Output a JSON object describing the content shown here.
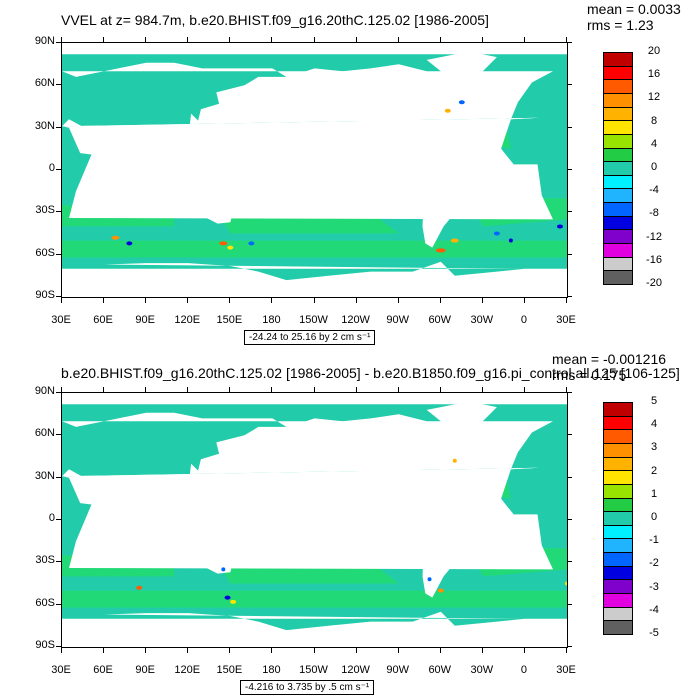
{
  "panels": [
    {
      "title": "VVEL at z= 984.7m, b.e20.BHIST.f09_g16.20thC.125.02 [1986-2005]",
      "stats": [
        "mean = 0.0033",
        "rms = 1.23"
      ],
      "range_label": "-24.24 to 25.16 by 2 cm s⁻¹",
      "colorbar_labels": [
        "20",
        "16",
        "12",
        "8",
        "4",
        "0",
        "-4",
        "-8",
        "-12",
        "-16",
        "-20"
      ],
      "colors": [
        "#c00000",
        "#ff0000",
        "#ff5a00",
        "#ff9000",
        "#ffb200",
        "#ffe400",
        "#98e400",
        "#22cc44",
        "#22ccaa",
        "#00f0ff",
        "#20b4ff",
        "#0066ff",
        "#0000e0",
        "#8000cc",
        "#e000e0",
        "#cccccc",
        "#606060"
      ]
    },
    {
      "title": "b.e20.BHIST.f09_g16.20thC.125.02 [1986-2005] - b.e20.B1850.f09_g16.pi_control.all.125 [106-125]",
      "stats": [
        "mean = -0.001216",
        "rms = 0.175"
      ],
      "range_label": "-4.216 to 3.735 by .5 cm s⁻¹",
      "colorbar_labels": [
        "5",
        "4",
        "3",
        "2",
        "1",
        "0",
        "-1",
        "-2",
        "-3",
        "-4",
        "-5"
      ],
      "colors": [
        "#c00000",
        "#ff0000",
        "#ff5a00",
        "#ff9000",
        "#ffb200",
        "#ffe400",
        "#98e400",
        "#22cc44",
        "#22ccaa",
        "#00f0ff",
        "#20b4ff",
        "#0066ff",
        "#0000e0",
        "#8000cc",
        "#e000e0",
        "#cccccc",
        "#606060"
      ]
    }
  ],
  "lat_labels": [
    "90N",
    "60N",
    "30N",
    "0",
    "30S",
    "60S",
    "90S"
  ],
  "lon_labels": [
    "30E",
    "60E",
    "90E",
    "120E",
    "150E",
    "180",
    "150W",
    "120W",
    "90W",
    "60W",
    "30W",
    "0",
    "30E"
  ],
  "map_colors": {
    "ocean_main": "#22ccaa",
    "ocean_alt": "#22dd66",
    "land": "#ffffff"
  }
}
